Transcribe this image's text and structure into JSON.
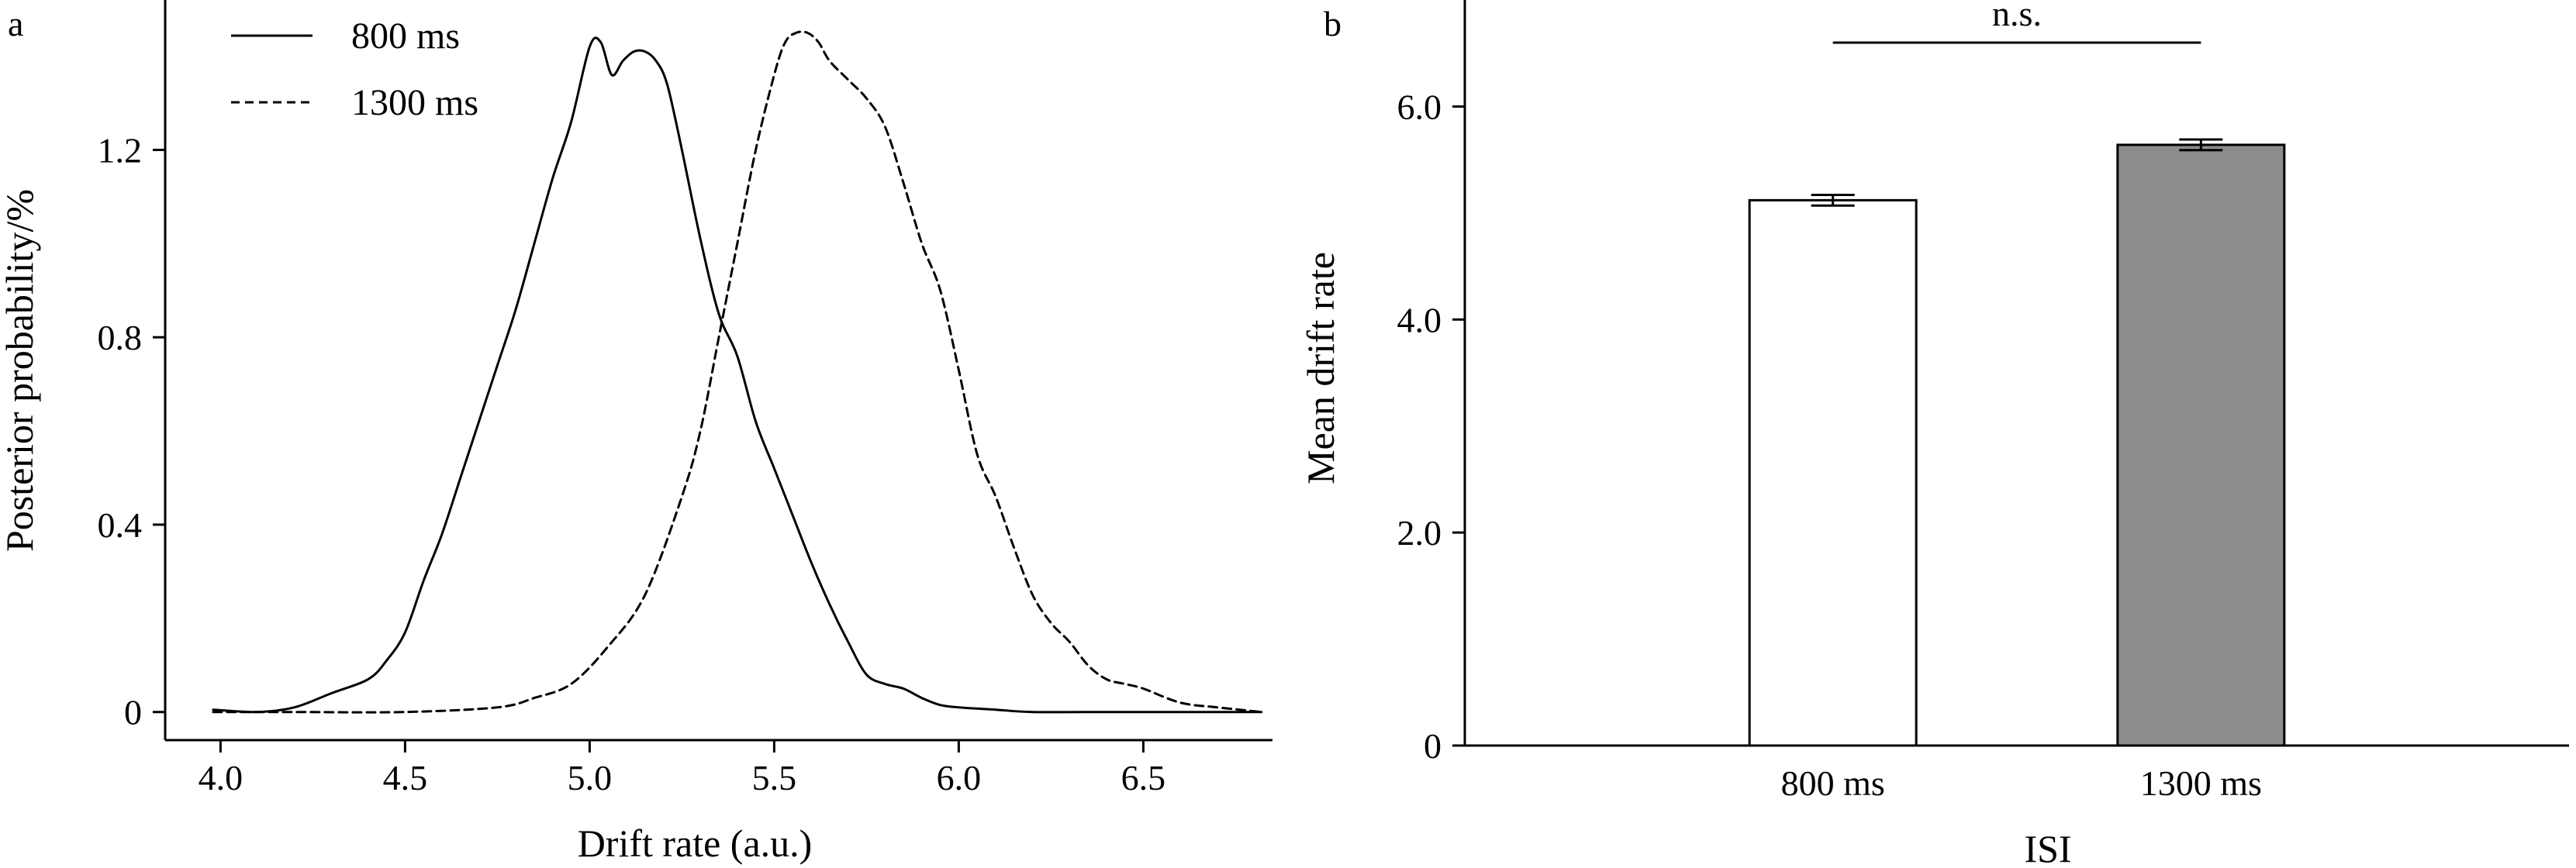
{
  "chart_data": [
    {
      "panel": "a",
      "type": "line",
      "xlabel": "Drift rate (a.u.)",
      "ylabel": "Posterior probability/%",
      "xlim": [
        3.85,
        6.85
      ],
      "ylim": [
        -0.06,
        1.52
      ],
      "xticks": [
        4.0,
        4.5,
        5.0,
        5.5,
        6.0,
        6.5
      ],
      "xtick_labels": [
        "4.0",
        "4.5",
        "5.0",
        "5.5",
        "6.0",
        "6.5"
      ],
      "yticks": [
        0,
        0.4,
        0.8,
        1.2
      ],
      "ytick_labels": [
        "0",
        "0.4",
        "0.8",
        "1.2"
      ],
      "legend_position": "top-left",
      "series": [
        {
          "name": "800 ms",
          "style": "solid",
          "x": [
            3.98,
            4.1,
            4.2,
            4.3,
            4.4,
            4.45,
            4.5,
            4.55,
            4.6,
            4.65,
            4.7,
            4.75,
            4.8,
            4.85,
            4.9,
            4.95,
            5.0,
            5.03,
            5.06,
            5.09,
            5.12,
            5.15,
            5.18,
            5.21,
            5.25,
            5.3,
            5.35,
            5.4,
            5.45,
            5.5,
            5.55,
            5.6,
            5.65,
            5.7,
            5.75,
            5.8,
            5.85,
            5.9,
            5.95,
            6.0,
            6.1,
            6.2,
            6.4,
            6.6,
            6.82
          ],
          "y": [
            0.005,
            0.0,
            0.01,
            0.04,
            0.07,
            0.11,
            0.17,
            0.28,
            0.38,
            0.5,
            0.62,
            0.74,
            0.86,
            1.0,
            1.14,
            1.26,
            1.42,
            1.43,
            1.36,
            1.39,
            1.41,
            1.41,
            1.39,
            1.34,
            1.2,
            1.01,
            0.85,
            0.76,
            0.62,
            0.52,
            0.42,
            0.32,
            0.23,
            0.15,
            0.08,
            0.06,
            0.05,
            0.03,
            0.015,
            0.01,
            0.005,
            0.0,
            0.0,
            0.0,
            0.0
          ]
        },
        {
          "name": "1300 ms",
          "style": "dashed",
          "x": [
            3.98,
            4.2,
            4.5,
            4.75,
            4.85,
            4.95,
            5.05,
            5.15,
            5.25,
            5.3,
            5.35,
            5.4,
            5.45,
            5.5,
            5.53,
            5.56,
            5.59,
            5.62,
            5.65,
            5.7,
            5.75,
            5.8,
            5.85,
            5.9,
            5.95,
            6.0,
            6.05,
            6.1,
            6.15,
            6.2,
            6.25,
            6.3,
            6.35,
            6.4,
            6.45,
            6.5,
            6.6,
            6.7,
            6.82
          ],
          "y": [
            0.0,
            0.0,
            0.0,
            0.01,
            0.03,
            0.06,
            0.14,
            0.25,
            0.46,
            0.6,
            0.8,
            1.0,
            1.2,
            1.36,
            1.43,
            1.45,
            1.45,
            1.43,
            1.39,
            1.35,
            1.31,
            1.25,
            1.13,
            1.0,
            0.9,
            0.73,
            0.55,
            0.46,
            0.35,
            0.25,
            0.19,
            0.15,
            0.1,
            0.07,
            0.06,
            0.05,
            0.02,
            0.01,
            0.0
          ]
        }
      ]
    },
    {
      "panel": "b",
      "type": "bar",
      "xlabel": "ISI",
      "ylabel": "Mean drift rate",
      "categories": [
        "800 ms",
        "1300 ms"
      ],
      "values": [
        5.12,
        5.64
      ],
      "errors": [
        0.05,
        0.05
      ],
      "bar_colors": [
        "#ffffff",
        "#8c8c8c"
      ],
      "ylim": [
        0,
        7.0
      ],
      "yticks": [
        0,
        2.0,
        4.0,
        6.0
      ],
      "ytick_labels": [
        "0",
        "2.0",
        "4.0",
        "6.0"
      ],
      "significance": {
        "label": "n.s.",
        "y": 6.6
      }
    }
  ]
}
